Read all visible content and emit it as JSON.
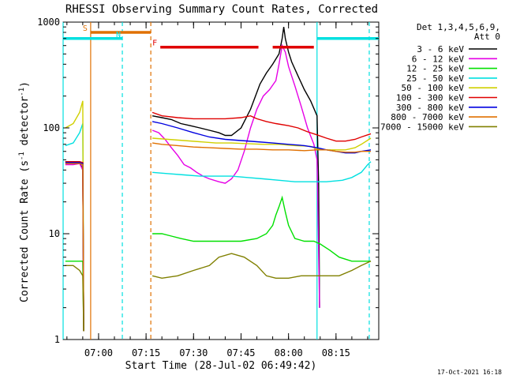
{
  "chart_data": {
    "type": "line",
    "title": "RHESSI Observing Summary Count Rates, Corrected",
    "xlabel": "Start Time (28-Jul-02 06:49:42)",
    "ylabel": "Corrected Count Rate (s",
    "ylabel_sup": "-1",
    "ylabel_tail": " detector",
    "ylabel_tail_sup": "-1",
    "ylabel_close": ")",
    "yscale": "log",
    "ylim": [
      1,
      1000
    ],
    "xlim_min": [
      -1.2,
      98.5
    ],
    "y_ticks": [
      {
        "value": 1,
        "label": "1"
      },
      {
        "value": 10,
        "label": "10"
      },
      {
        "value": 100,
        "label": "100"
      },
      {
        "value": 1000,
        "label": "1000"
      }
    ],
    "x_ticks": [
      {
        "value": 10,
        "label": "07:00"
      },
      {
        "value": 25,
        "label": "07:15"
      },
      {
        "value": 40,
        "label": "07:30"
      },
      {
        "value": 55,
        "label": "07:45"
      },
      {
        "value": 70,
        "label": "08:00"
      },
      {
        "value": 85,
        "label": "08:15"
      }
    ],
    "legend_header": [
      "Det 1,3,4,5,6,9,",
      "Att 0"
    ],
    "legend": [
      {
        "label": "3 - 6 keV",
        "color": "#000000"
      },
      {
        "label": "6 - 12 keV",
        "color": "#e600e6"
      },
      {
        "label": "12 - 25 keV",
        "color": "#00e000"
      },
      {
        "label": "25 - 50 keV",
        "color": "#00e0e0"
      },
      {
        "label": "50 - 100 keV",
        "color": "#d0d000"
      },
      {
        "label": "100 - 300 keV",
        "color": "#e00000"
      },
      {
        "label": "300 - 800 keV",
        "color": "#0000e0"
      },
      {
        "label": "800 - 7000 keV",
        "color": "#e07000"
      },
      {
        "label": "7000 - 15000 keV",
        "color": "#808000"
      }
    ],
    "annotations": [
      {
        "flag": "S",
        "color": "#e07000",
        "x0": 7.5,
        "x1": 26.5,
        "y": 800
      },
      {
        "flag": "N",
        "color": "#00e0e0",
        "x0": -1.2,
        "x1": 17.5,
        "y": 700
      },
      {
        "flag": "F",
        "color": "#e00000",
        "x0": 29.5,
        "x1": 60.5,
        "y": 580
      },
      {
        "flag": "",
        "color": "#e00000",
        "x0": 65,
        "x1": 78,
        "y": 580
      },
      {
        "flag": "",
        "color": "#00e0e0",
        "x0": 79,
        "x1": 98.5,
        "y": 700
      }
    ],
    "vlines": [
      {
        "x": -1.2,
        "color": "#00e0e0",
        "dashed": false
      },
      {
        "x": 17.5,
        "color": "#00e0e0",
        "dashed": true
      },
      {
        "x": 26.5,
        "color": "#e07000",
        "dashed": true
      },
      {
        "x": 79,
        "color": "#00e0e0",
        "dashed": false
      },
      {
        "x": 95.5,
        "color": "#00e0e0",
        "dashed": true
      },
      {
        "x": 7.5,
        "color": "#e07000",
        "dashed": false
      }
    ],
    "series": [
      {
        "name": "3 - 6 keV",
        "color": "#000000",
        "points": [
          [
            -0.5,
            48
          ],
          [
            2,
            48
          ],
          [
            4,
            48
          ],
          [
            5,
            40
          ],
          [
            5.3,
            1.2
          ],
          [
            null,
            null
          ],
          [
            27,
            130
          ],
          [
            30,
            125
          ],
          [
            33,
            120
          ],
          [
            36,
            110
          ],
          [
            39,
            105
          ],
          [
            42,
            100
          ],
          [
            45,
            95
          ],
          [
            48,
            90
          ],
          [
            50,
            85
          ],
          [
            52,
            85
          ],
          [
            55,
            100
          ],
          [
            58,
            150
          ],
          [
            61,
            260
          ],
          [
            63,
            330
          ],
          [
            65,
            400
          ],
          [
            67,
            500
          ],
          [
            68,
            700
          ],
          [
            68.5,
            900
          ],
          [
            69,
            700
          ],
          [
            70,
            520
          ],
          [
            71,
            420
          ],
          [
            73,
            310
          ],
          [
            75,
            230
          ],
          [
            77,
            180
          ],
          [
            79,
            130
          ],
          [
            79.5,
            30
          ],
          [
            79.8,
            2
          ]
        ]
      },
      {
        "name": "6 - 12 keV",
        "color": "#e600e6",
        "points": [
          [
            -0.5,
            45
          ],
          [
            2,
            45
          ],
          [
            4,
            46
          ],
          [
            5,
            40
          ],
          [
            5.3,
            1.2
          ],
          [
            null,
            null
          ],
          [
            27,
            95
          ],
          [
            29,
            90
          ],
          [
            31,
            78
          ],
          [
            33,
            65
          ],
          [
            35,
            55
          ],
          [
            37,
            45
          ],
          [
            39,
            42
          ],
          [
            41,
            38
          ],
          [
            43,
            35
          ],
          [
            45,
            33
          ],
          [
            48,
            31
          ],
          [
            50,
            30
          ],
          [
            52,
            33
          ],
          [
            54,
            40
          ],
          [
            56,
            60
          ],
          [
            58,
            100
          ],
          [
            60,
            150
          ],
          [
            62,
            200
          ],
          [
            64,
            230
          ],
          [
            66,
            280
          ],
          [
            67,
            400
          ],
          [
            68,
            600
          ],
          [
            69,
            520
          ],
          [
            70,
            380
          ],
          [
            72,
            250
          ],
          [
            74,
            160
          ],
          [
            76,
            100
          ],
          [
            78,
            70
          ],
          [
            79,
            50
          ],
          [
            79.8,
            2
          ]
        ]
      },
      {
        "name": "12 - 25 keV",
        "color": "#00e000",
        "points": [
          [
            -0.5,
            5.5
          ],
          [
            2,
            5.5
          ],
          [
            4,
            5.5
          ],
          [
            5,
            5.5
          ],
          [
            5.3,
            1.2
          ],
          [
            null,
            null
          ],
          [
            27,
            10
          ],
          [
            30,
            10
          ],
          [
            33,
            9.5
          ],
          [
            36,
            9
          ],
          [
            40,
            8.5
          ],
          [
            45,
            8.5
          ],
          [
            50,
            8.5
          ],
          [
            55,
            8.5
          ],
          [
            60,
            9
          ],
          [
            63,
            10
          ],
          [
            65,
            12
          ],
          [
            66,
            15
          ],
          [
            67,
            18
          ],
          [
            68,
            22
          ],
          [
            69,
            16
          ],
          [
            70,
            12
          ],
          [
            72,
            9
          ],
          [
            75,
            8.5
          ],
          [
            78,
            8.5
          ],
          [
            80,
            8
          ],
          [
            83,
            7
          ],
          [
            86,
            6
          ],
          [
            90,
            5.5
          ],
          [
            93,
            5.5
          ],
          [
            96,
            5.5
          ]
        ]
      },
      {
        "name": "25 - 50 keV",
        "color": "#00e0e0",
        "points": [
          [
            -0.5,
            68
          ],
          [
            2,
            72
          ],
          [
            4,
            90
          ],
          [
            5,
            110
          ],
          [
            5.3,
            1.2
          ],
          [
            null,
            null
          ],
          [
            27,
            38
          ],
          [
            32,
            37
          ],
          [
            37,
            36
          ],
          [
            42,
            35
          ],
          [
            47,
            35
          ],
          [
            52,
            35
          ],
          [
            57,
            34
          ],
          [
            62,
            33
          ],
          [
            67,
            32
          ],
          [
            72,
            31
          ],
          [
            77,
            31
          ],
          [
            82,
            31
          ],
          [
            87,
            32
          ],
          [
            90,
            34
          ],
          [
            93,
            38
          ],
          [
            95,
            45
          ],
          [
            96,
            48
          ]
        ]
      },
      {
        "name": "50 - 100 keV",
        "color": "#d0d000",
        "points": [
          [
            -0.5,
            100
          ],
          [
            2,
            110
          ],
          [
            4,
            140
          ],
          [
            5,
            180
          ],
          [
            5.3,
            1.2
          ],
          [
            null,
            null
          ],
          [
            27,
            80
          ],
          [
            32,
            78
          ],
          [
            37,
            76
          ],
          [
            42,
            74
          ],
          [
            47,
            72
          ],
          [
            52,
            72
          ],
          [
            57,
            71
          ],
          [
            62,
            70
          ],
          [
            67,
            70
          ],
          [
            72,
            68
          ],
          [
            77,
            67
          ],
          [
            79,
            63
          ],
          [
            82,
            62
          ],
          [
            85,
            62
          ],
          [
            88,
            62
          ],
          [
            91,
            65
          ],
          [
            93,
            70
          ],
          [
            96,
            80
          ]
        ]
      },
      {
        "name": "100 - 300 keV",
        "color": "#e00000",
        "points": [
          [
            -0.5,
            48
          ],
          [
            2,
            48
          ],
          [
            4,
            48
          ],
          [
            5,
            47
          ],
          [
            5.3,
            1.2
          ],
          [
            null,
            null
          ],
          [
            27,
            140
          ],
          [
            30,
            130
          ],
          [
            35,
            125
          ],
          [
            40,
            122
          ],
          [
            45,
            122
          ],
          [
            50,
            122
          ],
          [
            55,
            125
          ],
          [
            58,
            130
          ],
          [
            60,
            122
          ],
          [
            63,
            115
          ],
          [
            66,
            110
          ],
          [
            70,
            105
          ],
          [
            73,
            100
          ],
          [
            76,
            92
          ],
          [
            79,
            86
          ],
          [
            82,
            80
          ],
          [
            85,
            75
          ],
          [
            88,
            75
          ],
          [
            91,
            78
          ],
          [
            93,
            82
          ],
          [
            96,
            88
          ]
        ]
      },
      {
        "name": "300 - 800 keV",
        "color": "#0000e0",
        "points": [
          [
            -0.5,
            47
          ],
          [
            2,
            47
          ],
          [
            4,
            47
          ],
          [
            5,
            46
          ],
          [
            5.3,
            1.2
          ],
          [
            null,
            null
          ],
          [
            27,
            115
          ],
          [
            30,
            110
          ],
          [
            35,
            100
          ],
          [
            40,
            90
          ],
          [
            45,
            82
          ],
          [
            50,
            78
          ],
          [
            55,
            76
          ],
          [
            60,
            74
          ],
          [
            65,
            72
          ],
          [
            70,
            70
          ],
          [
            75,
            68
          ],
          [
            79,
            65
          ],
          [
            82,
            62
          ],
          [
            85,
            60
          ],
          [
            88,
            58
          ],
          [
            91,
            58
          ],
          [
            93,
            60
          ],
          [
            96,
            62
          ]
        ]
      },
      {
        "name": "800 - 7000 keV",
        "color": "#e07000",
        "points": [
          [
            -0.5,
            46
          ],
          [
            2,
            46
          ],
          [
            4,
            46
          ],
          [
            5,
            45
          ],
          [
            5.3,
            1.2
          ],
          [
            null,
            null
          ],
          [
            27,
            72
          ],
          [
            30,
            70
          ],
          [
            35,
            68
          ],
          [
            40,
            66
          ],
          [
            45,
            65
          ],
          [
            50,
            64
          ],
          [
            55,
            63
          ],
          [
            60,
            63
          ],
          [
            65,
            62
          ],
          [
            70,
            62
          ],
          [
            75,
            61
          ],
          [
            79,
            62
          ],
          [
            82,
            62
          ],
          [
            85,
            60
          ],
          [
            88,
            59
          ],
          [
            91,
            59
          ],
          [
            93,
            60
          ],
          [
            96,
            60
          ]
        ]
      },
      {
        "name": "7000 - 15000 keV",
        "color": "#808000",
        "points": [
          [
            -0.5,
            5
          ],
          [
            2,
            5
          ],
          [
            4,
            4.5
          ],
          [
            5,
            4
          ],
          [
            5.3,
            1.2
          ],
          [
            null,
            null
          ],
          [
            27,
            4
          ],
          [
            30,
            3.8
          ],
          [
            35,
            4
          ],
          [
            40,
            4.5
          ],
          [
            45,
            5
          ],
          [
            48,
            6
          ],
          [
            52,
            6.5
          ],
          [
            56,
            6
          ],
          [
            60,
            5
          ],
          [
            63,
            4
          ],
          [
            66,
            3.8
          ],
          [
            70,
            3.8
          ],
          [
            74,
            4
          ],
          [
            78,
            4
          ],
          [
            82,
            4
          ],
          [
            86,
            4
          ],
          [
            90,
            4.5
          ],
          [
            93,
            5
          ],
          [
            96,
            5.5
          ]
        ]
      }
    ]
  },
  "footer": {
    "date_stamp": "17-Oct-2021 16:18"
  }
}
